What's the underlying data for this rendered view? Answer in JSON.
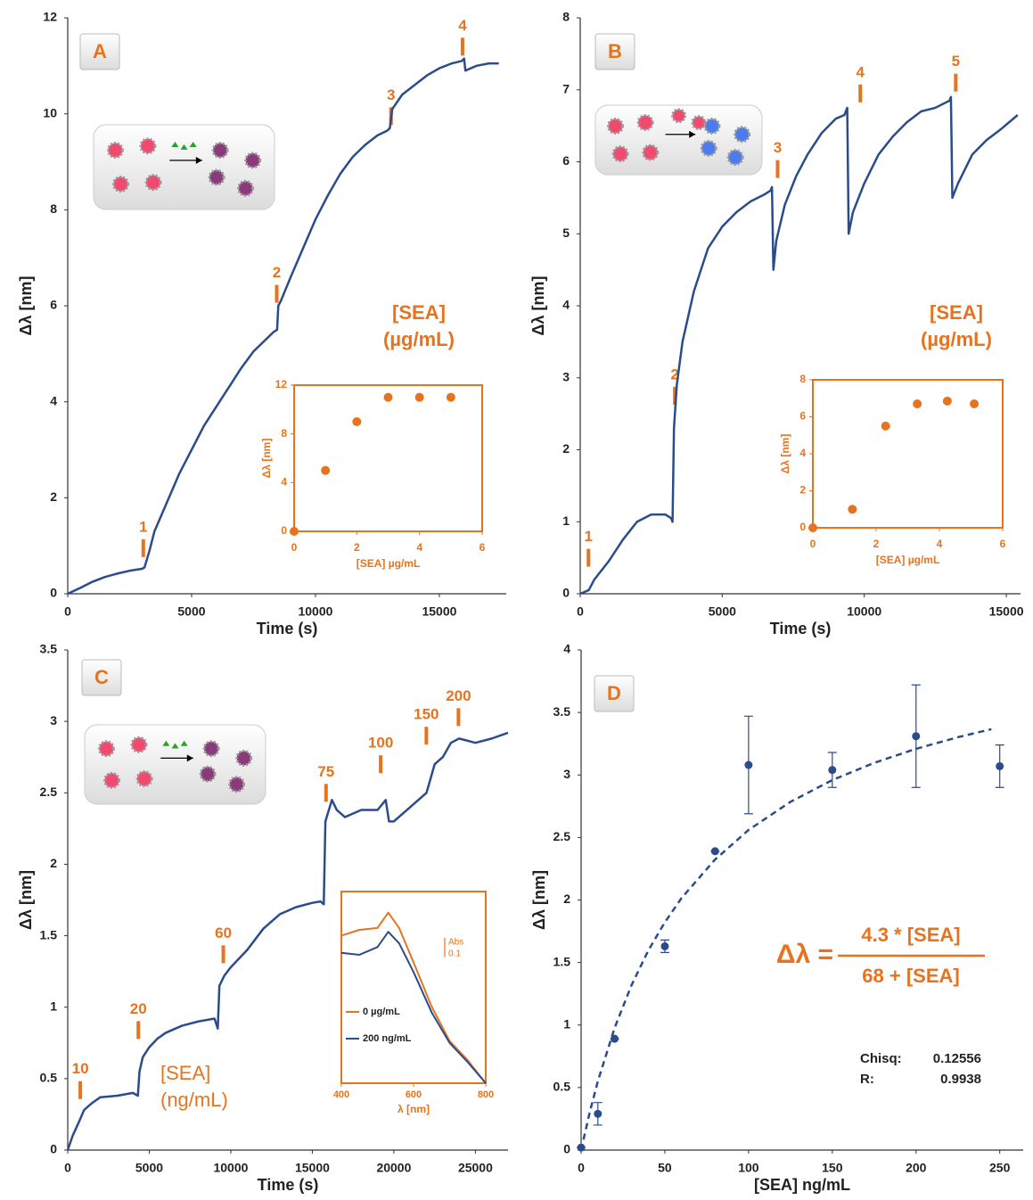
{
  "chart_data": [
    {
      "type": "line",
      "label": "A",
      "color": "#2b4c8c",
      "xlabel": "Time (s)",
      "ylabel": "Δλ [nm]",
      "x": [
        0,
        500,
        1000,
        1500,
        2000,
        2500,
        3000,
        3100,
        3300,
        3500,
        4000,
        4500,
        5000,
        5500,
        6000,
        6500,
        7000,
        7500,
        8000,
        8300,
        8450,
        8500,
        8600,
        9000,
        9500,
        10000,
        10500,
        11000,
        11500,
        12000,
        12500,
        12900,
        13000,
        13100,
        13500,
        14000,
        14500,
        15000,
        15500,
        15900,
        16000,
        16050,
        16500,
        17000,
        17400
      ],
      "values": [
        0,
        0.12,
        0.25,
        0.35,
        0.42,
        0.48,
        0.52,
        0.55,
        0.9,
        1.3,
        1.9,
        2.5,
        3.0,
        3.5,
        3.9,
        4.3,
        4.7,
        5.05,
        5.3,
        5.45,
        5.5,
        6.0,
        6.1,
        6.6,
        7.2,
        7.8,
        8.3,
        8.75,
        9.1,
        9.35,
        9.55,
        9.65,
        9.7,
        10.1,
        10.4,
        10.6,
        10.8,
        10.95,
        11.05,
        11.1,
        11.15,
        10.9,
        11.0,
        11.05,
        11.05
      ],
      "xlim": [
        0,
        17700
      ],
      "ylim": [
        0,
        12
      ],
      "xticks": [
        0,
        5000,
        10000,
        15000
      ],
      "yticks": [
        0,
        2,
        4,
        6,
        8,
        10,
        12
      ],
      "annotations": [
        {
          "text": "1",
          "x": 3050,
          "y": 0.95
        },
        {
          "text": "2",
          "x": 8436,
          "y": 6.25
        },
        {
          "text": "3",
          "x": 13050,
          "y": 9.95
        },
        {
          "text": "4",
          "x": 15935,
          "y": 11.4
        }
      ],
      "note": [
        "[SEA]",
        "(µg/mL)"
      ]
    },
    {
      "type": "scatter",
      "color": "#e8731e",
      "xlabel": "[SEA] µg/mL",
      "ylabel": "Δλ [nm]",
      "x": [
        0,
        1,
        2,
        3,
        4,
        5
      ],
      "values": [
        0,
        5,
        9,
        11,
        11,
        11
      ],
      "xlim": [
        0,
        6
      ],
      "ylim": [
        0,
        12
      ],
      "xticks": [
        0,
        2,
        4,
        6
      ],
      "yticks": [
        0,
        4,
        8,
        12
      ]
    },
    {
      "type": "line",
      "label": "B",
      "color": "#2b4c8c",
      "xlabel": "Time (s)",
      "ylabel": "Δλ [nm]",
      "x": [
        0,
        300,
        500,
        1000,
        1500,
        2000,
        2500,
        3000,
        3200,
        3250,
        3300,
        3400,
        3600,
        4000,
        4500,
        5000,
        5500,
        6000,
        6500,
        6700,
        6750,
        6800,
        6900,
        7200,
        7600,
        8000,
        8500,
        9000,
        9300,
        9400,
        9450,
        9600,
        10000,
        10500,
        11000,
        11500,
        12000,
        12500,
        13000,
        13050,
        13100,
        13300,
        13800,
        14300,
        14800,
        15400
      ],
      "values": [
        0,
        0.05,
        0.2,
        0.45,
        0.75,
        1.0,
        1.1,
        1.1,
        1.05,
        1.0,
        2.3,
        2.9,
        3.5,
        4.2,
        4.8,
        5.1,
        5.3,
        5.45,
        5.55,
        5.6,
        5.65,
        4.5,
        4.9,
        5.4,
        5.8,
        6.1,
        6.4,
        6.6,
        6.65,
        6.75,
        5.0,
        5.3,
        5.7,
        6.1,
        6.35,
        6.55,
        6.7,
        6.75,
        6.85,
        6.9,
        5.5,
        5.7,
        6.1,
        6.3,
        6.45,
        6.65
      ],
      "xlim": [
        0,
        15500
      ],
      "ylim": [
        0,
        8
      ],
      "xticks": [
        0,
        5000,
        10000,
        15000
      ],
      "yticks": [
        0,
        1,
        2,
        3,
        4,
        5,
        6,
        7,
        8
      ],
      "annotations": [
        {
          "text": "1",
          "x": 290,
          "y": 0.5
        },
        {
          "text": "2",
          "x": 3330,
          "y": 2.75
        },
        {
          "text": "3",
          "x": 6950,
          "y": 5.9
        },
        {
          "text": "4",
          "x": 9860,
          "y": 6.95
        },
        {
          "text": "5",
          "x": 13220,
          "y": 7.1
        }
      ],
      "note": [
        "[SEA]",
        "(µg/mL)"
      ]
    },
    {
      "type": "scatter",
      "color": "#e8731e",
      "xlabel": "[SEA] µg/mL",
      "ylabel": "Δλ [nm]",
      "x": [
        0,
        1.25,
        2.3,
        3.3,
        4.25,
        5.1
      ],
      "values": [
        0,
        1,
        5.5,
        6.7,
        6.85,
        6.7
      ],
      "xlim": [
        0,
        6
      ],
      "ylim": [
        0,
        8
      ],
      "xticks": [
        0,
        2,
        4,
        6
      ],
      "yticks": [
        0,
        2,
        4,
        6,
        8
      ]
    },
    {
      "type": "line",
      "label": "C",
      "color": "#2b4c8c",
      "xlabel": "Time (s)",
      "ylabel": "Δλ [nm]",
      "x": [
        0,
        300,
        700,
        1000,
        1500,
        2000,
        3000,
        4000,
        4300,
        4400,
        4600,
        5000,
        5500,
        6000,
        7000,
        8000,
        9000,
        9200,
        9300,
        9600,
        10000,
        11000,
        12000,
        13000,
        14000,
        15000,
        15500,
        15700,
        15800,
        16200,
        16500,
        17000,
        18000,
        19000,
        19500,
        19700,
        20000,
        21000,
        22000,
        22500,
        23000,
        23500,
        24000,
        25000,
        26000,
        27000
      ],
      "values": [
        0,
        0.1,
        0.2,
        0.28,
        0.33,
        0.37,
        0.38,
        0.4,
        0.38,
        0.55,
        0.65,
        0.72,
        0.78,
        0.82,
        0.87,
        0.9,
        0.92,
        0.85,
        1.15,
        1.22,
        1.28,
        1.4,
        1.55,
        1.65,
        1.7,
        1.73,
        1.74,
        1.72,
        2.3,
        2.45,
        2.38,
        2.33,
        2.38,
        2.38,
        2.45,
        2.3,
        2.3,
        2.4,
        2.5,
        2.7,
        2.75,
        2.85,
        2.88,
        2.85,
        2.88,
        2.92
      ],
      "xlim": [
        0,
        27000
      ],
      "ylim": [
        0,
        3.5
      ],
      "xticks": [
        0,
        5000,
        10000,
        15000,
        20000,
        25000
      ],
      "yticks": [
        0,
        0.5,
        1,
        1.5,
        2,
        2.5,
        3,
        3.5
      ],
      "annotations": [
        {
          "text": "10",
          "x": 770,
          "y": 0.42
        },
        {
          "text": "20",
          "x": 4330,
          "y": 0.84
        },
        {
          "text": "60",
          "x": 9540,
          "y": 1.37
        },
        {
          "text": "75",
          "x": 15840,
          "y": 2.5
        },
        {
          "text": "100",
          "x": 19190,
          "y": 2.7
        },
        {
          "text": "150",
          "x": 21990,
          "y": 2.9
        },
        {
          "text": "200",
          "x": 23960,
          "y": 3.03
        }
      ],
      "note": [
        "[SEA]",
        "(ng/mL)"
      ]
    },
    {
      "type": "line",
      "xlabel": "λ [nm]",
      "x": [
        400,
        450,
        500,
        530,
        560,
        600,
        650,
        700,
        750,
        800
      ],
      "series": [
        {
          "name": "0 µg/mL",
          "color": "#e8731e",
          "values": [
            0.77,
            0.8,
            0.81,
            0.89,
            0.81,
            0.63,
            0.4,
            0.22,
            0.12,
            0
          ]
        },
        {
          "name": "200 ng/mL",
          "color": "#2b4c8c",
          "values": [
            0.68,
            0.67,
            0.71,
            0.79,
            0.73,
            0.58,
            0.37,
            0.21,
            0.11,
            0
          ]
        }
      ],
      "xlim": [
        400,
        800
      ],
      "ylim": [
        0,
        1
      ],
      "xticks": [
        400,
        600,
        800
      ],
      "scale_bar": {
        "label": "Abs",
        "value": 0.1
      }
    },
    {
      "type": "scatter",
      "label": "D",
      "color": "#2b4c8c",
      "xlabel": "[SEA] ng/mL",
      "ylabel": "Δλ [nm]",
      "x": [
        0,
        10,
        20,
        50,
        80,
        100,
        150,
        200,
        250
      ],
      "values": [
        0.02,
        0.29,
        0.89,
        1.63,
        2.39,
        3.08,
        3.04,
        3.31,
        3.07
      ],
      "errors": [
        0,
        0.09,
        0,
        0.05,
        0,
        0.39,
        0.14,
        0.41,
        0.17
      ],
      "fit": {
        "x": [
          0,
          5,
          10,
          20,
          30,
          40,
          50,
          60,
          80,
          100,
          125,
          150,
          175,
          200,
          225,
          245
        ],
        "values": [
          0,
          0.294,
          0.551,
          0.977,
          1.316,
          1.593,
          1.822,
          2.016,
          2.324,
          2.56,
          2.785,
          2.959,
          3.097,
          3.209,
          3.302,
          3.366
        ]
      },
      "xlim": [
        0,
        264
      ],
      "ylim": [
        0,
        4
      ],
      "xticks": [
        0,
        50,
        100,
        150,
        200,
        250
      ],
      "yticks": [
        0,
        0.5,
        1,
        1.5,
        2,
        2.5,
        3,
        3.5,
        4
      ],
      "equation": {
        "lhs": "Δλ =",
        "numerator": "4.3 * [SEA]",
        "denominator": "68 + [SEA]"
      },
      "stats": [
        [
          "Chisq:",
          "0.12556"
        ],
        [
          "R:",
          "0.9938"
        ]
      ]
    }
  ]
}
